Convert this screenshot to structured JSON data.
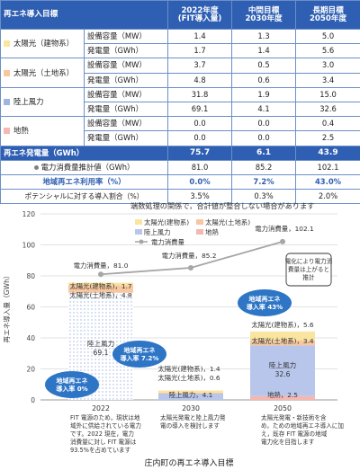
{
  "table": {
    "header": {
      "title": "再エネ導入目標",
      "col1": "2022年度\n(FIT導入量)",
      "col2": "中間目標\n2030年度",
      "col3": "長期目標\n2050年度"
    },
    "groups": [
      {
        "name": "太陽光（建物系）",
        "color": "#f9e79f",
        "rows": [
          {
            "label": "設備容量（MW）",
            "v": [
              "1.4",
              "1.3",
              "5.0"
            ]
          },
          {
            "label": "発電量（GWh）",
            "v": [
              "1.7",
              "1.4",
              "5.6"
            ]
          }
        ]
      },
      {
        "name": "太陽光（土地系）",
        "color": "#f7c8a0",
        "rows": [
          {
            "label": "設備容量（MW）",
            "v": [
              "3.7",
              "0.5",
              "3.0"
            ]
          },
          {
            "label": "発電量（GWh）",
            "v": [
              "4.8",
              "0.6",
              "3.4"
            ]
          }
        ]
      },
      {
        "name": "陸上風力",
        "color": "#9fb4e0",
        "rows": [
          {
            "label": "設備容量（MW）",
            "v": [
              "31.8",
              "1.9",
              "15.0"
            ]
          },
          {
            "label": "発電量（GWh）",
            "v": [
              "69.1",
              "4.1",
              "32.6"
            ]
          }
        ]
      },
      {
        "name": "地熱",
        "color": "#f5b7b1",
        "rows": [
          {
            "label": "設備容量（MW）",
            "v": [
              "0.0",
              "0.0",
              "0.4"
            ]
          },
          {
            "label": "発電量（GWh）",
            "v": [
              "0.0",
              "0.0",
              "2.5"
            ]
          }
        ]
      }
    ],
    "total": {
      "label": "再エネ発電量（GWh）",
      "v": [
        "75.7",
        "6.1",
        "43.9"
      ]
    },
    "demand": {
      "label": "電力消費量推計値（GWh）",
      "v": [
        "81.0",
        "85.2",
        "102.1"
      ]
    },
    "rate": {
      "label": "地域再エネ利用率（%）",
      "v": [
        "0.0%",
        "7.2%",
        "43.0%"
      ]
    },
    "potential": {
      "label": "ポテンシャルに対する導入割合（%）",
      "v": [
        "3.5%",
        "0.3%",
        "2.0%"
      ]
    }
  },
  "chart_data": {
    "type": "bar",
    "note": "端数処理の関係で，合計値が整合しない場合があります",
    "ylabel": "再エネ導入量（GWh）",
    "ylim": [
      0,
      120
    ],
    "yticks": [
      "0",
      "20",
      "40",
      "60",
      "80",
      "100",
      "120"
    ],
    "categories": [
      "2022",
      "2030",
      "2050"
    ],
    "series": [
      {
        "name": "太陽光(建物系)",
        "color": "#f9e4a0",
        "values": [
          1.7,
          1.4,
          5.6
        ]
      },
      {
        "name": "太陽光(土地系)",
        "color": "#f7c8a0",
        "values": [
          4.8,
          0.6,
          3.4
        ]
      },
      {
        "name": "陸上風力",
        "color": "#b7c6ea",
        "values": [
          69.1,
          4.1,
          32.6
        ]
      },
      {
        "name": "地熱",
        "color": "#f5b7b1",
        "values": [
          0.0,
          0.0,
          2.5
        ]
      },
      {
        "name": "電力消費量",
        "color": "#a6a6a6",
        "type": "line",
        "values": [
          81.0,
          85.2,
          102.1
        ]
      }
    ],
    "bar_labels": [
      {
        "demand": "電力消費量，81.0",
        "items": [
          "太陽光(建物系)，1.7",
          "太陽光(土地系)，4.8",
          "陸上風力\n69.1"
        ]
      },
      {
        "demand": "電力消費量，85.2",
        "items": [
          "太陽光(建物系)，1.4",
          "太陽光(土地系)，0.6",
          "陸上風力，4.1"
        ]
      },
      {
        "demand": "電力消費量，102.1",
        "items": [
          "太陽光(建物系)，5.6",
          "太陽光(土地系)，3.4",
          "陸上風力\n32.6",
          "地熱，2.5"
        ]
      }
    ],
    "bubbles": [
      "地域再エネ\n導入率 0%",
      "地域再エネ\n導入率 7.2%",
      "地域再エネ\n導入率 43%"
    ],
    "callout": "電化により電力消\n費量は上がると\n推計",
    "notes": [
      "FIT 電源のため，現状は地\n域外に供給されている電力\nです。2022 現在，電力\n消費量に対し FIT 電源は\n93.5%を占めています",
      "太陽光発電と陸上風力発\n電の導入を検討します",
      "太陽光発電・新技術を含\nめ，ための地域再エネ導入に加\nえ，既存 FIT 電源の地域\n電力化を目指します"
    ],
    "caption": "庄内町の再エネ導入目標",
    "legend_placement": "top"
  }
}
